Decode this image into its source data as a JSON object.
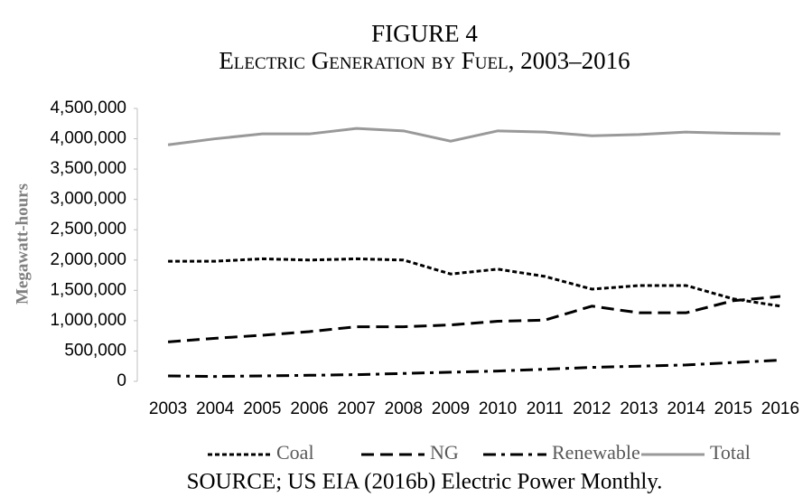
{
  "chart_data": {
    "type": "line",
    "title": "FIGURE 4",
    "subtitle": "Electric Generation by Fuel, 2003–2016",
    "source": "SOURCE; US EIA (2016b) Electric Power Monthly.",
    "y_label": "Megawatt-hours",
    "categories": [
      "2003",
      "2004",
      "2005",
      "2006",
      "2007",
      "2008",
      "2009",
      "2010",
      "2011",
      "2012",
      "2013",
      "2014",
      "2015",
      "2016"
    ],
    "series": [
      {
        "name": "Coal",
        "color": "#000000",
        "style": "dotted",
        "values": [
          1980000,
          1980000,
          2020000,
          2000000,
          2020000,
          2000000,
          1770000,
          1850000,
          1730000,
          1520000,
          1580000,
          1580000,
          1360000,
          1240000
        ]
      },
      {
        "name": "NG",
        "color": "#000000",
        "style": "dashed",
        "values": [
          650000,
          710000,
          760000,
          820000,
          900000,
          900000,
          930000,
          990000,
          1010000,
          1240000,
          1130000,
          1130000,
          1330000,
          1400000
        ]
      },
      {
        "name": "Renewable",
        "color": "#000000",
        "style": "dashdot",
        "values": [
          90000,
          80000,
          90000,
          100000,
          110000,
          130000,
          150000,
          170000,
          200000,
          230000,
          250000,
          270000,
          310000,
          350000
        ]
      },
      {
        "name": "Total",
        "color": "#999999",
        "style": "solid",
        "values": [
          3900000,
          4000000,
          4080000,
          4080000,
          4170000,
          4130000,
          3960000,
          4130000,
          4110000,
          4050000,
          4070000,
          4110000,
          4090000,
          4080000
        ]
      }
    ],
    "ylim": [
      0,
      4500000
    ],
    "yticks": [
      0,
      {
        "value": 500000,
        "label": "500,000"
      },
      {
        "value": 1000000,
        "label": "1,000,000"
      },
      {
        "value": 1500000,
        "label": "1,500,000"
      },
      {
        "value": 2000000,
        "label": "2,000,000"
      },
      {
        "value": 2500000,
        "label": "2,500,000"
      },
      {
        "value": 3000000,
        "label": "3,000,000"
      },
      {
        "value": 3500000,
        "label": "3,500,000"
      },
      {
        "value": 4000000,
        "label": "4,000,000"
      },
      {
        "value": 4500000,
        "label": "4,500,000"
      }
    ],
    "grid": false,
    "legend": "bottom"
  }
}
